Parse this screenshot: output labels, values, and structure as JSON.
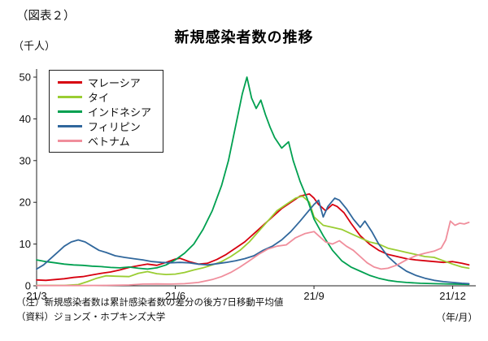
{
  "figure_label": "（図表２）",
  "title": "新規感染者数の推移",
  "y_axis_unit": "（千人）",
  "x_axis_unit": "（年/月）",
  "notes": [
    "（注）新規感染者数は累計感染者数の差分の後方7日移動平均値",
    "（資料）ジョンズ・ホプキンズ大学"
  ],
  "chart_data": {
    "type": "line",
    "title": "新規感染者数の推移",
    "xlabel": "（年/月）",
    "ylabel": "（千人）",
    "grid": false,
    "legend_position": "upper-left",
    "xlim": [
      3,
      12.5
    ],
    "ylim": [
      0,
      50
    ],
    "y_ticks": [
      0,
      10,
      20,
      30,
      40,
      50
    ],
    "x_ticks": [
      {
        "value": 3,
        "label": "21/3"
      },
      {
        "value": 6,
        "label": "21/6"
      },
      {
        "value": 9,
        "label": "21/9"
      },
      {
        "value": 12,
        "label": "21/12"
      }
    ],
    "series": [
      {
        "id": "malaysia",
        "name": "マレーシア",
        "color": "#d7000f",
        "x": [
          3.0,
          3.2,
          3.4,
          3.6,
          3.8,
          4.0,
          4.2,
          4.4,
          4.6,
          4.8,
          5.0,
          5.2,
          5.4,
          5.6,
          5.8,
          6.0,
          6.1,
          6.3,
          6.5,
          6.7,
          6.9,
          7.1,
          7.3,
          7.5,
          7.7,
          7.9,
          8.1,
          8.3,
          8.5,
          8.7,
          8.9,
          9.0,
          9.1,
          9.25,
          9.4,
          9.5,
          9.65,
          9.8,
          10.0,
          10.2,
          10.4,
          10.6,
          10.8,
          11.0,
          11.2,
          11.4,
          11.6,
          11.8,
          12.0,
          12.2,
          12.35
        ],
        "y": [
          1.4,
          1.3,
          1.5,
          1.7,
          2.0,
          2.2,
          2.6,
          3.0,
          3.3,
          3.8,
          4.4,
          4.8,
          5.2,
          4.9,
          5.6,
          6.4,
          6.6,
          5.8,
          5.2,
          5.4,
          6.3,
          7.5,
          9.0,
          10.5,
          12.5,
          14.5,
          16.5,
          18.5,
          20.0,
          21.5,
          22.0,
          21.0,
          19.5,
          18.0,
          19.5,
          19.0,
          17.5,
          15.0,
          12.0,
          10.0,
          8.5,
          7.5,
          7.0,
          6.5,
          6.2,
          6.0,
          5.8,
          5.6,
          5.8,
          5.4,
          5.0
        ]
      },
      {
        "id": "thailand",
        "name": "タイ",
        "color": "#9acd32",
        "x": [
          3.0,
          3.3,
          3.6,
          3.9,
          4.1,
          4.3,
          4.5,
          4.7,
          5.0,
          5.2,
          5.4,
          5.6,
          5.8,
          6.0,
          6.2,
          6.4,
          6.6,
          6.8,
          7.0,
          7.2,
          7.4,
          7.6,
          7.8,
          8.0,
          8.2,
          8.4,
          8.6,
          8.75,
          8.9,
          9.0,
          9.2,
          9.4,
          9.6,
          9.8,
          10.0,
          10.2,
          10.4,
          10.6,
          10.8,
          11.0,
          11.2,
          11.4,
          11.6,
          11.8,
          12.0,
          12.2,
          12.35
        ],
        "y": [
          0.1,
          0.1,
          0.1,
          0.3,
          1.0,
          1.8,
          2.4,
          2.3,
          2.2,
          3.0,
          3.4,
          2.9,
          2.7,
          2.8,
          3.2,
          3.8,
          4.3,
          5.0,
          5.8,
          7.0,
          8.5,
          10.5,
          13.0,
          15.5,
          18.0,
          19.5,
          21.0,
          21.5,
          20.0,
          16.5,
          14.5,
          14.0,
          13.5,
          12.5,
          11.5,
          10.5,
          10.0,
          9.0,
          8.5,
          8.0,
          7.5,
          7.0,
          6.8,
          6.0,
          5.2,
          4.5,
          4.2
        ]
      },
      {
        "id": "indonesia",
        "name": "インドネシア",
        "color": "#00a050",
        "x": [
          3.0,
          3.2,
          3.4,
          3.6,
          3.8,
          4.0,
          4.2,
          4.4,
          4.6,
          4.8,
          5.0,
          5.2,
          5.4,
          5.6,
          5.8,
          6.0,
          6.2,
          6.4,
          6.6,
          6.8,
          7.0,
          7.15,
          7.3,
          7.45,
          7.55,
          7.65,
          7.75,
          7.85,
          7.95,
          8.05,
          8.15,
          8.3,
          8.45,
          8.55,
          8.7,
          8.85,
          9.0,
          9.2,
          9.4,
          9.6,
          9.8,
          10.0,
          10.2,
          10.4,
          10.6,
          10.8,
          11.0,
          11.3,
          11.6,
          12.0,
          12.35
        ],
        "y": [
          6.2,
          5.8,
          5.5,
          5.2,
          5.0,
          4.9,
          4.7,
          4.6,
          4.4,
          4.3,
          4.5,
          4.2,
          4.0,
          4.3,
          5.0,
          6.2,
          7.8,
          10.0,
          13.5,
          18.0,
          24.0,
          30.0,
          38.0,
          46.0,
          50.0,
          45.0,
          42.5,
          44.5,
          41.0,
          38.0,
          35.5,
          33.0,
          34.5,
          30.0,
          25.0,
          21.0,
          16.0,
          12.0,
          8.5,
          6.0,
          4.5,
          3.5,
          2.5,
          1.8,
          1.3,
          1.0,
          0.8,
          0.6,
          0.5,
          0.4,
          0.35
        ]
      },
      {
        "id": "philippines",
        "name": "フィリピン",
        "color": "#30679c",
        "x": [
          3.0,
          3.15,
          3.3,
          3.45,
          3.6,
          3.75,
          3.9,
          4.05,
          4.2,
          4.35,
          4.5,
          4.7,
          4.9,
          5.1,
          5.3,
          5.5,
          5.7,
          5.9,
          6.1,
          6.3,
          6.5,
          6.7,
          6.9,
          7.1,
          7.3,
          7.5,
          7.7,
          7.9,
          8.1,
          8.3,
          8.5,
          8.7,
          8.85,
          9.0,
          9.1,
          9.2,
          9.3,
          9.45,
          9.55,
          9.7,
          9.85,
          10.0,
          10.1,
          10.25,
          10.4,
          10.6,
          10.8,
          11.0,
          11.2,
          11.4,
          11.6,
          11.8,
          12.0,
          12.2,
          12.35
        ],
        "y": [
          4.0,
          5.0,
          6.5,
          8.0,
          9.5,
          10.5,
          11.0,
          10.5,
          9.5,
          8.5,
          8.0,
          7.2,
          6.8,
          6.5,
          6.2,
          5.8,
          5.6,
          5.5,
          5.6,
          5.5,
          5.2,
          5.0,
          5.3,
          5.6,
          6.0,
          6.5,
          7.2,
          8.5,
          9.5,
          11.0,
          13.0,
          15.5,
          17.5,
          19.5,
          20.5,
          16.5,
          19.0,
          21.0,
          20.5,
          18.5,
          16.0,
          14.0,
          15.5,
          13.0,
          10.0,
          7.0,
          5.0,
          3.5,
          2.5,
          1.8,
          1.3,
          1.0,
          0.8,
          0.6,
          0.5
        ]
      },
      {
        "id": "vietnam",
        "name": "ベトナム",
        "color": "#f08e9c",
        "x": [
          3.0,
          3.5,
          4.0,
          4.5,
          5.0,
          5.3,
          5.6,
          5.9,
          6.2,
          6.5,
          6.8,
          7.0,
          7.2,
          7.4,
          7.6,
          7.8,
          8.0,
          8.2,
          8.4,
          8.6,
          8.8,
          9.0,
          9.1,
          9.25,
          9.4,
          9.55,
          9.7,
          9.85,
          10.0,
          10.15,
          10.3,
          10.45,
          10.6,
          10.8,
          11.0,
          11.2,
          11.4,
          11.6,
          11.75,
          11.85,
          11.95,
          12.05,
          12.15,
          12.25,
          12.35
        ],
        "y": [
          0.05,
          0.05,
          0.05,
          0.1,
          0.2,
          0.4,
          0.45,
          0.4,
          0.5,
          0.8,
          1.5,
          2.2,
          3.2,
          4.5,
          6.0,
          7.5,
          8.8,
          9.5,
          9.8,
          11.5,
          12.5,
          13.0,
          12.0,
          10.5,
          10.0,
          10.8,
          9.5,
          8.5,
          7.0,
          5.5,
          4.5,
          4.0,
          4.2,
          5.0,
          6.2,
          7.2,
          7.8,
          8.3,
          9.0,
          11.0,
          15.5,
          14.5,
          15.0,
          14.8,
          15.2
        ]
      }
    ]
  }
}
